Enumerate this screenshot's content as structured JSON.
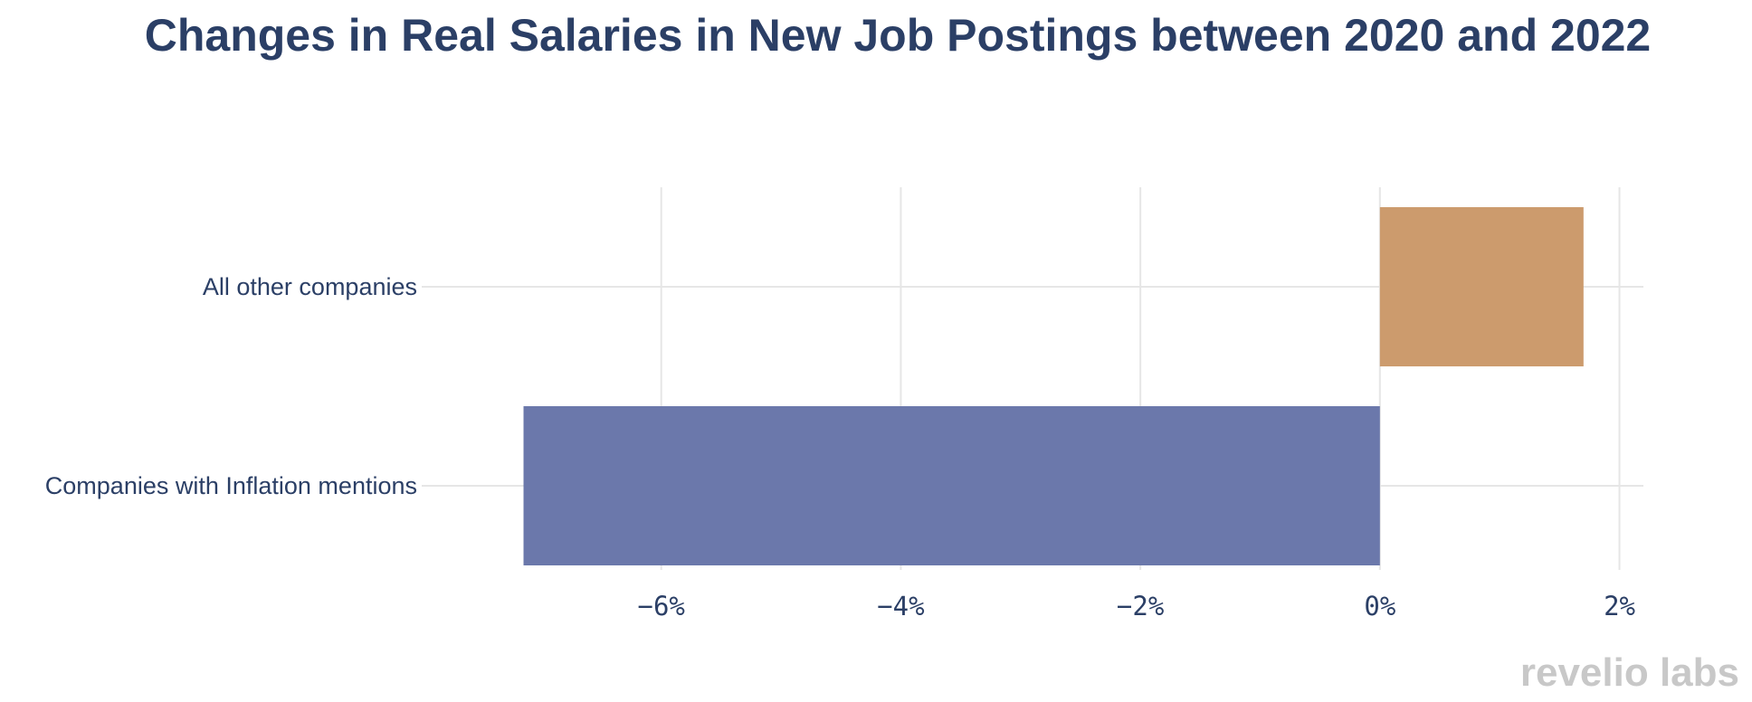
{
  "watermark": "revelio labs",
  "chart_data": {
    "type": "bar",
    "orientation": "horizontal",
    "title": "Changes in Real Salaries in New Job Postings between 2020 and 2022",
    "categories": [
      "All other companies",
      "Companies with Inflation mentions"
    ],
    "values": [
      1.7,
      -7.15
    ],
    "colors": [
      "#cc9b6d",
      "#6b78ab"
    ],
    "xlim": [
      -8.0,
      2.2
    ],
    "xticks": [
      -6,
      -4,
      -2,
      0,
      2
    ],
    "xtick_labels": [
      "−6%",
      "−4%",
      "−2%",
      "0%",
      "2%"
    ],
    "grid": true,
    "xlabel": "",
    "ylabel": ""
  }
}
